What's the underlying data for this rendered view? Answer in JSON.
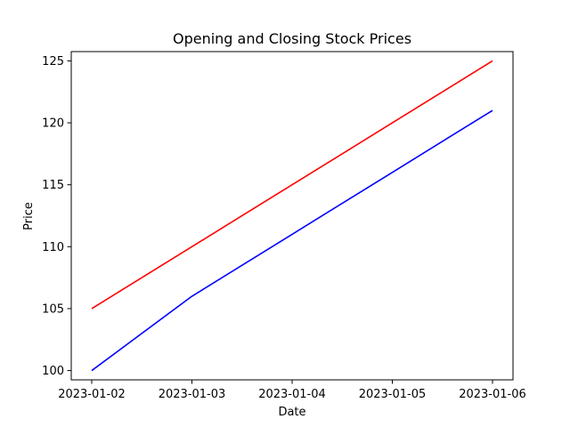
{
  "chart_data": {
    "type": "line",
    "title": "Opening and Closing Stock Prices",
    "xlabel": "Date",
    "ylabel": "Price",
    "x": [
      "2023-01-02",
      "2023-01-03",
      "2023-01-04",
      "2023-01-05",
      "2023-01-06"
    ],
    "series": [
      {
        "key": "closing",
        "color": "#ff0000",
        "values": [
          105,
          110,
          115,
          120,
          125
        ]
      },
      {
        "key": "opening",
        "color": "#0000ff",
        "values": [
          100,
          106,
          111,
          116,
          121
        ]
      }
    ],
    "ylim": [
      99.25,
      125.75
    ],
    "yticks": [
      100,
      105,
      110,
      115,
      120,
      125
    ],
    "grid": false,
    "legend": "none"
  }
}
